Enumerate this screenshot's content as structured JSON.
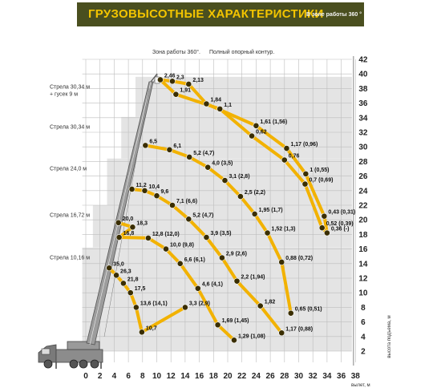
{
  "header": {
    "title": "ГРУЗОВЫСОТНЫЕ ХАРАКТЕРИСТИКИ",
    "subtitle": "В зоне работы 360 °"
  },
  "notes": [
    "Зона работы 360°.",
    "Полный опорный контур."
  ],
  "colors": {
    "arc": "#f2b200",
    "arc_dark": "#3a2e00",
    "grid": "#bdbdbd",
    "shade": "#e4e4e4",
    "banner": "#4a4f1f",
    "banner_text": "#f3c400"
  },
  "chart_data": {
    "type": "line",
    "xlabel": "вылет, м",
    "ylabel": "высота подъема, м",
    "x_ticks": [
      0,
      2,
      4,
      6,
      8,
      10,
      12,
      14,
      16,
      18,
      20,
      22,
      24,
      26,
      28,
      30,
      32,
      34,
      36,
      38
    ],
    "y_ticks": [
      2,
      4,
      6,
      8,
      10,
      12,
      14,
      16,
      18,
      20,
      22,
      24,
      26,
      28,
      30,
      32,
      34,
      36,
      38,
      40,
      42
    ],
    "xlim": [
      0,
      38
    ],
    "ylim": [
      2,
      42
    ],
    "series": [
      {
        "name": "Стрела 30,34 м + гусек 9 м",
        "name_y": 38,
        "points": [
          {
            "x": 10.5,
            "y": 39.2,
            "label": "2,46"
          },
          {
            "x": 12.2,
            "y": 39.0,
            "label": "2,3"
          },
          {
            "x": 12.7,
            "y": 37.2,
            "label": "1,91"
          },
          {
            "x": 14.5,
            "y": 38.6,
            "label": "2,13"
          },
          {
            "x": 18.9,
            "y": 35.2,
            "label": "1,1"
          },
          {
            "x": 17.0,
            "y": 35.9,
            "label": "1,84"
          },
          {
            "x": 23.4,
            "y": 31.5,
            "label": "0,62"
          },
          {
            "x": 24.0,
            "y": 32.9,
            "label": "1,61 (1,56)"
          },
          {
            "x": 28.0,
            "y": 28.2,
            "label": "0,76"
          },
          {
            "x": 28.3,
            "y": 29.8,
            "label": "1,17 (0,96)"
          },
          {
            "x": 30.9,
            "y": 24.9,
            "label": "0,7 (0,69)"
          },
          {
            "x": 31.0,
            "y": 26.3,
            "label": "1 (0,55)"
          },
          {
            "x": 33.3,
            "y": 18.9,
            "label": "0,52 (0,39)"
          },
          {
            "x": 33.6,
            "y": 20.5,
            "label": "0,43 (0,31)"
          },
          {
            "x": 34.0,
            "y": 18.2,
            "label": "0,36 (-)"
          }
        ]
      },
      {
        "name": "Стрела 30,34 м",
        "name_y": 32.5,
        "points": [
          {
            "x": 8.4,
            "y": 30.2,
            "label": "6,5"
          },
          {
            "x": 11.8,
            "y": 29.6,
            "label": "6,1"
          },
          {
            "x": 14.6,
            "y": 28.6,
            "label": "5,2 (4,7)"
          },
          {
            "x": 17.2,
            "y": 27.2,
            "label": "4,0 (3,5)"
          },
          {
            "x": 19.6,
            "y": 25.4,
            "label": "3,1 (2,8)"
          },
          {
            "x": 21.8,
            "y": 23.2,
            "label": "2,5 (2,2)"
          },
          {
            "x": 23.8,
            "y": 20.8,
            "label": "1,95 (1,7)"
          },
          {
            "x": 25.6,
            "y": 18.2,
            "label": "1,52 (1,3)"
          },
          {
            "x": 27.6,
            "y": 14.2,
            "label": "0,88 (0,72)"
          },
          {
            "x": 28.9,
            "y": 7.2,
            "label": "0,65 (0,51)"
          }
        ]
      },
      {
        "name": "Стрела 24,0 м",
        "name_y": 26.8,
        "points": [
          {
            "x": 6.5,
            "y": 24.2,
            "label": "11,2"
          },
          {
            "x": 8.3,
            "y": 24.0,
            "label": "10,4"
          },
          {
            "x": 10.0,
            "y": 23.3,
            "label": "9,6"
          },
          {
            "x": 12.2,
            "y": 22.0,
            "label": "7,1 (6,6)"
          },
          {
            "x": 14.5,
            "y": 20.1,
            "label": "5,2 (4,7)"
          },
          {
            "x": 17.0,
            "y": 17.6,
            "label": "3,9 (3,5)"
          },
          {
            "x": 19.2,
            "y": 14.8,
            "label": "2,9 (2,6)"
          },
          {
            "x": 21.3,
            "y": 11.6,
            "label": "2,2 (1,94)"
          },
          {
            "x": 24.6,
            "y": 8.2,
            "label": "1,82"
          },
          {
            "x": 27.6,
            "y": 4.5,
            "label": "1,17 (0,88)"
          }
        ]
      },
      {
        "name": "Стрела 16,72 м",
        "name_y": 20.4,
        "points": [
          {
            "x": 4.6,
            "y": 19.6,
            "label": "20,0"
          },
          {
            "x": 6.6,
            "y": 19.0,
            "label": "18,3"
          },
          {
            "x": 4.7,
            "y": 17.6,
            "label": "16,8"
          },
          {
            "x": 8.8,
            "y": 17.5,
            "label": "12,8 (12,0)"
          },
          {
            "x": 11.3,
            "y": 16.0,
            "label": "10,0 (9,8)"
          },
          {
            "x": 13.3,
            "y": 14.0,
            "label": "6,6 (6,1)"
          },
          {
            "x": 15.8,
            "y": 10.6,
            "label": "4,6 (4,1)"
          },
          {
            "x": 18.6,
            "y": 5.6,
            "label": "1,69 (1,45)"
          },
          {
            "x": 20.9,
            "y": 3.5,
            "label": "1,29 (1,08)"
          }
        ]
      },
      {
        "name": "Стрела 10,16 м",
        "name_y": 14.6,
        "points": [
          {
            "x": 3.3,
            "y": 13.4,
            "label": "35,0"
          },
          {
            "x": 4.3,
            "y": 12.4,
            "label": "26,3"
          },
          {
            "x": 5.3,
            "y": 11.3,
            "label": "21,8"
          },
          {
            "x": 6.3,
            "y": 10.0,
            "label": "17,5"
          },
          {
            "x": 7.1,
            "y": 8.0,
            "label": "13,6 (14,1)"
          },
          {
            "x": 7.9,
            "y": 4.6,
            "label": "10,7"
          },
          {
            "x": 14.0,
            "y": 8.0,
            "label": "3,3 (2,9)"
          }
        ]
      }
    ]
  }
}
